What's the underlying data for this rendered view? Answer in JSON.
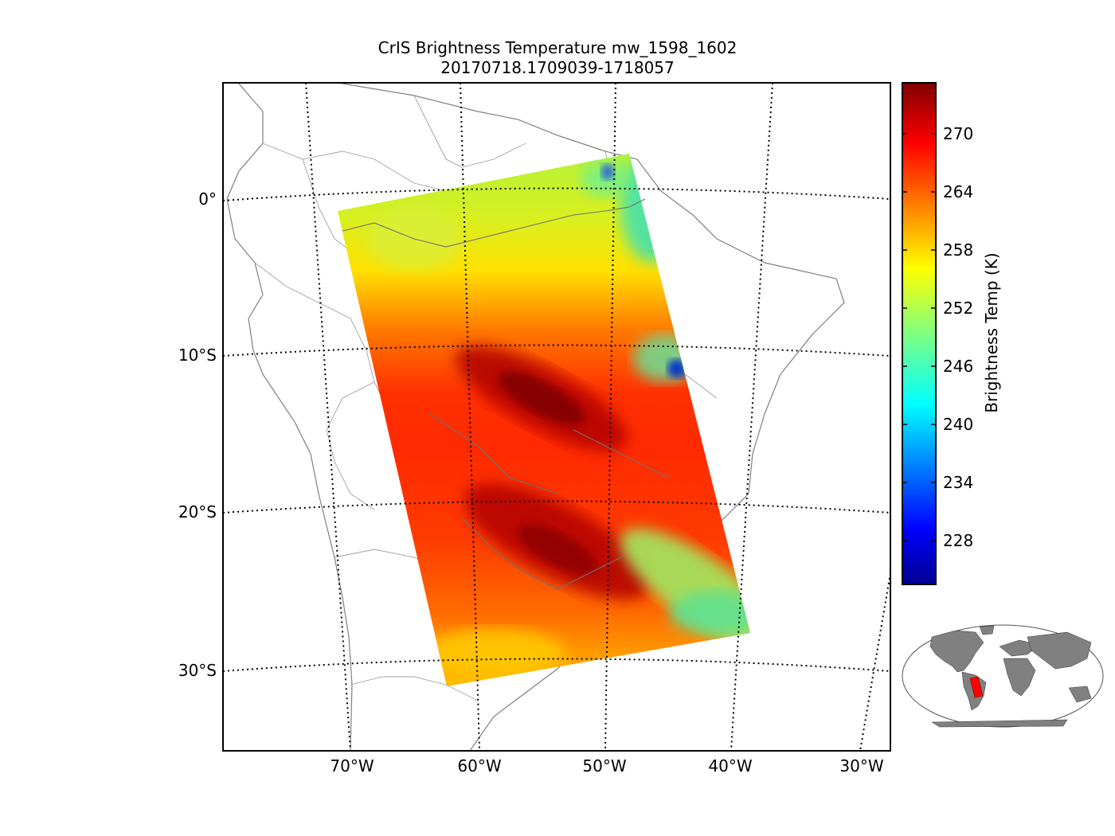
{
  "title": {
    "line1": "CrIS Brightness Temperature mw_1598_1602",
    "line2": "20170718.1709039-1718057"
  },
  "map": {
    "lat_labels": [
      "0°",
      "10°S",
      "20°S",
      "30°S"
    ],
    "lon_labels": [
      "70°W",
      "60°W",
      "50°W",
      "40°W",
      "30°W"
    ],
    "grid_style": "dotted",
    "swath_shape": "tilted rectangle over South America",
    "hot_core_color": "#8b0000",
    "cool_spot_color": "#0033cc",
    "coast_color": "#808080"
  },
  "colorbar": {
    "label": "Brightness Temp (K)",
    "ticks": [
      "270",
      "264",
      "258",
      "252",
      "246",
      "240",
      "234",
      "228"
    ],
    "colormap": "jet"
  },
  "inset": {
    "land_color": "#808080",
    "swath_color": "#ff0000"
  }
}
